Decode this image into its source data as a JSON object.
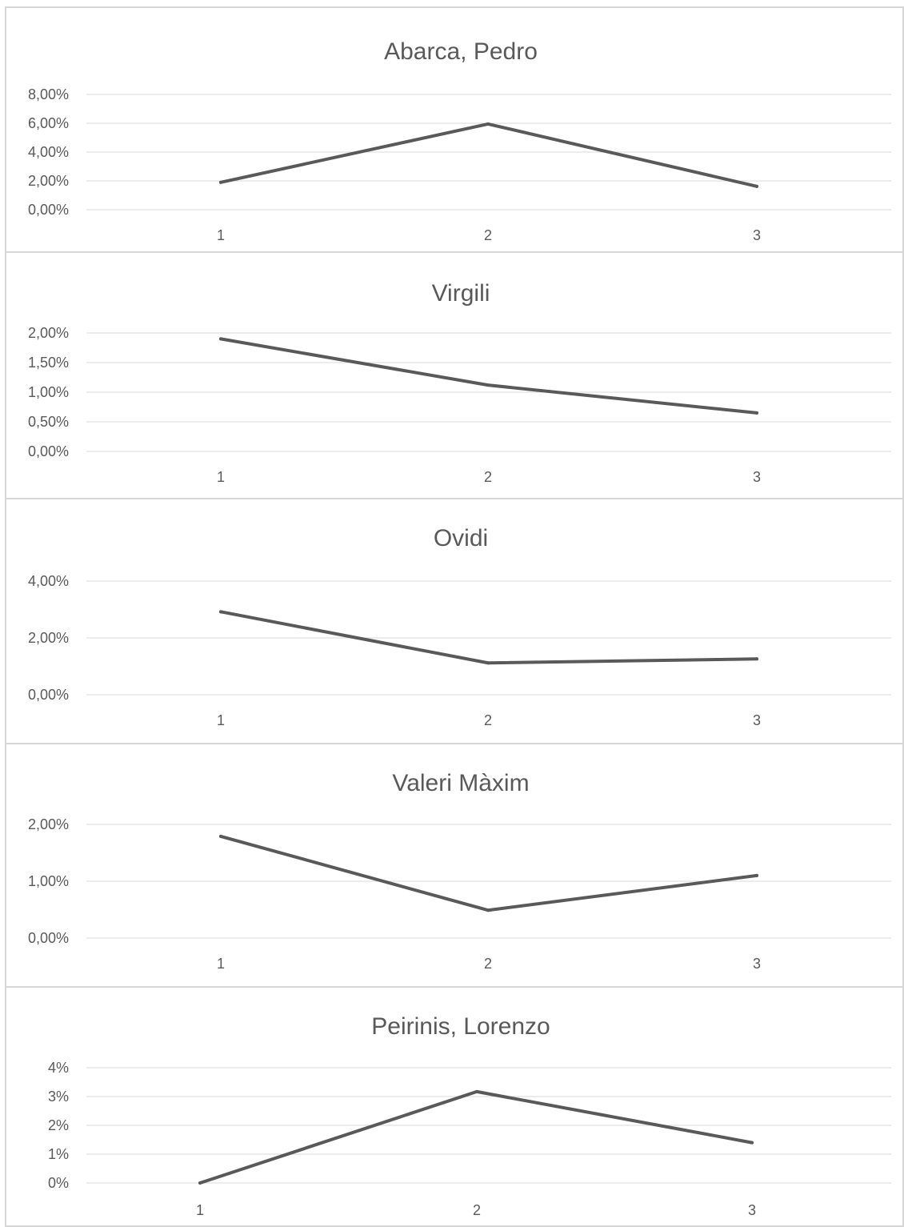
{
  "chart_data": [
    {
      "type": "line",
      "title": "Abarca, Pedro",
      "categories": [
        "1",
        "2",
        "3"
      ],
      "series": [
        {
          "values": [
            0.019,
            0.0595,
            0.0162
          ]
        }
      ],
      "yticks": [
        "0,00%",
        "2,00%",
        "4,00%",
        "6,00%",
        "8,00%"
      ],
      "ylim": [
        0,
        0.08
      ],
      "grid": true
    },
    {
      "type": "line",
      "title": "Virgili",
      "categories": [
        "1",
        "2",
        "3"
      ],
      "series": [
        {
          "values": [
            0.019,
            0.0112,
            0.0065
          ]
        }
      ],
      "yticks": [
        "0,00%",
        "0,50%",
        "1,00%",
        "1,50%",
        "2,00%"
      ],
      "ylim": [
        0,
        0.02
      ],
      "grid": true
    },
    {
      "type": "line",
      "title": "Ovidi",
      "categories": [
        "1",
        "2",
        "3"
      ],
      "series": [
        {
          "values": [
            0.0292,
            0.0112,
            0.0126
          ]
        }
      ],
      "yticks": [
        "0,00%",
        "2,00%",
        "4,00%"
      ],
      "ylim": [
        0,
        0.04
      ],
      "grid": true
    },
    {
      "type": "line",
      "title": "Valeri Màxim",
      "categories": [
        "1",
        "2",
        "3"
      ],
      "series": [
        {
          "values": [
            0.0179,
            0.0049,
            0.011
          ]
        }
      ],
      "yticks": [
        "0,00%",
        "1,00%",
        "2,00%"
      ],
      "ylim": [
        0,
        0.02
      ],
      "grid": true
    },
    {
      "type": "line",
      "title": "Peirinis, Lorenzo",
      "categories": [
        "1",
        "2",
        "3"
      ],
      "series": [
        {
          "values": [
            0.0,
            0.0317,
            0.014
          ]
        }
      ],
      "yticks": [
        "0%",
        "1%",
        "2%",
        "3%",
        "4%"
      ],
      "ylim": [
        0,
        0.04
      ],
      "grid": true
    }
  ],
  "colors": {
    "line": "#595959",
    "grid": "#d9d9d9",
    "text": "#595959",
    "panel_border": "#d6d6d6"
  }
}
